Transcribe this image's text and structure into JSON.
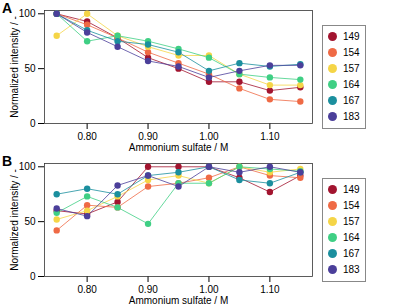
{
  "chart_data": [
    {
      "type": "line",
      "title": "A",
      "x_label": "Ammonium sulfate / M",
      "y_label": "Normalized intensity / -",
      "x": [
        0.75,
        0.8,
        0.85,
        0.9,
        0.95,
        1.0,
        1.05,
        1.1,
        1.15
      ],
      "xlim": [
        0.73,
        1.17
      ],
      "xticks": [
        0.8,
        0.9,
        1,
        1.1
      ],
      "ylim": [
        0,
        103
      ],
      "yticks": [
        0,
        50,
        100
      ],
      "legend": "right",
      "marker": "circle",
      "line_style": "solid",
      "series": [
        {
          "name": "149",
          "color": "#a2142f",
          "values": [
            100,
            93,
            78,
            60,
            50,
            38,
            38,
            30,
            33
          ]
        },
        {
          "name": "154",
          "color": "#ef6a45",
          "values": [
            100,
            90,
            78,
            65,
            55,
            45,
            32,
            22,
            20
          ]
        },
        {
          "name": "157",
          "color": "#f5d547",
          "values": [
            80,
            100,
            80,
            70,
            62,
            62,
            45,
            35,
            35
          ]
        },
        {
          "name": "164",
          "color": "#3fcf84",
          "values": [
            100,
            75,
            80,
            75,
            68,
            60,
            45,
            42,
            40
          ]
        },
        {
          "name": "167",
          "color": "#1b8f9e",
          "values": [
            100,
            85,
            75,
            72,
            65,
            48,
            55,
            52,
            54
          ]
        },
        {
          "name": "183",
          "color": "#4b3f9a",
          "values": [
            100,
            83,
            70,
            57,
            52,
            42,
            48,
            53,
            53
          ]
        }
      ]
    },
    {
      "type": "line",
      "title": "B",
      "x_label": "Ammonium sulfate / M",
      "y_label": "Normalized intensity / -",
      "x": [
        0.75,
        0.8,
        0.85,
        0.9,
        0.95,
        1.0,
        1.05,
        1.1,
        1.15
      ],
      "xlim": [
        0.73,
        1.17
      ],
      "xticks": [
        0.8,
        0.9,
        1,
        1.1
      ],
      "ylim": [
        0,
        103
      ],
      "yticks": [
        0,
        50,
        100
      ],
      "legend": "right",
      "marker": "circle",
      "line_style": "solid",
      "series": [
        {
          "name": "149",
          "color": "#a2142f",
          "values": [
            60,
            57,
            68,
            100,
            100,
            100,
            90,
            77,
            92
          ]
        },
        {
          "name": "154",
          "color": "#ef6a45",
          "values": [
            42,
            65,
            63,
            82,
            85,
            90,
            100,
            92,
            90
          ]
        },
        {
          "name": "157",
          "color": "#f5d547",
          "values": [
            52,
            60,
            73,
            88,
            92,
            85,
            100,
            95,
            98
          ]
        },
        {
          "name": "164",
          "color": "#3fcf84",
          "values": [
            58,
            73,
            63,
            48,
            85,
            85,
            100,
            98,
            96
          ]
        },
        {
          "name": "167",
          "color": "#1b8f9e",
          "values": [
            75,
            80,
            75,
            92,
            95,
            100,
            88,
            85,
            95
          ]
        },
        {
          "name": "183",
          "color": "#4b3f9a",
          "values": [
            62,
            55,
            83,
            92,
            82,
            100,
            95,
            100,
            95
          ]
        }
      ]
    }
  ]
}
